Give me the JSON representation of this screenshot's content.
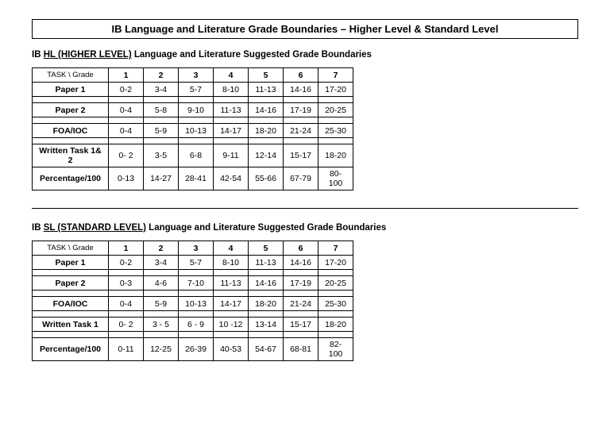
{
  "title": "IB Language and Literature Grade Boundaries – Higher Level & Standard Level",
  "hl": {
    "heading_prefix": "IB ",
    "heading_underline": "HL (HIGHER LEVEL)",
    "heading_suffix": " Language and Literature Suggested Grade Boundaries",
    "header_task": "TASK   \\   Grade",
    "grades": [
      "1",
      "2",
      "3",
      "4",
      "5",
      "6",
      "7"
    ],
    "rows": [
      {
        "task": "Paper 1",
        "cells": [
          "0-2",
          "3-4",
          "5-7",
          "8-10",
          "11-13",
          "14-16",
          "17-20"
        ]
      },
      {
        "task": "Paper 2",
        "cells": [
          "0-4",
          "5-8",
          "9-10",
          "11-13",
          "14-16",
          "17-19",
          "20-25"
        ]
      },
      {
        "task": "FOA/IOC",
        "cells": [
          "0-4",
          "5-9",
          "10-13",
          "14-17",
          "18-20",
          "21-24",
          "25-30"
        ]
      },
      {
        "task": "Written Task 1& 2",
        "cells": [
          "0- 2",
          "3-5",
          "6-8",
          "9-11",
          "12-14",
          "15-17",
          "18-20"
        ]
      },
      {
        "task": "Percentage/100",
        "cells": [
          "0-13",
          "14-27",
          "28-41",
          "42-54",
          "55-66",
          "67-79",
          "80-100"
        ]
      }
    ]
  },
  "sl": {
    "heading_prefix": "IB ",
    "heading_underline": "SL (STANDARD LEVEL)",
    "heading_suffix": " Language and Literature Suggested Grade Boundaries",
    "header_task": "TASK   \\   Grade",
    "grades": [
      "1",
      "2",
      "3",
      "4",
      "5",
      "6",
      "7"
    ],
    "rows": [
      {
        "task": "Paper 1",
        "cells": [
          "0-2",
          "3-4",
          "5-7",
          "8-10",
          "11-13",
          "14-16",
          "17-20"
        ]
      },
      {
        "task": "Paper 2",
        "cells": [
          "0-3",
          "4-6",
          "7-10",
          "11-13",
          "14-16",
          "17-19",
          "20-25"
        ]
      },
      {
        "task": "FOA/IOC",
        "cells": [
          "0-4",
          "5-9",
          "10-13",
          "14-17",
          "18-20",
          "21-24",
          "25-30"
        ]
      },
      {
        "task": "Written Task 1",
        "cells": [
          "0- 2",
          "3 - 5",
          "6 - 9",
          "10 -12",
          "13-14",
          "15-17",
          "18-20"
        ]
      },
      {
        "task": "Percentage/100",
        "cells": [
          "0-11",
          "12-25",
          "26-39",
          "40-53",
          "54-67",
          "68-81",
          "82-100"
        ]
      }
    ]
  }
}
